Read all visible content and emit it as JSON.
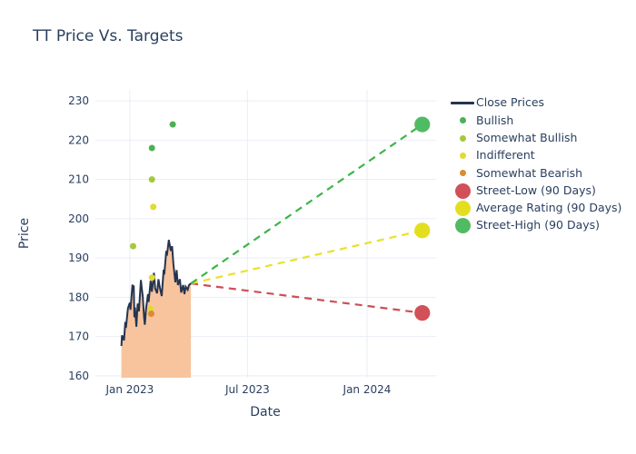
{
  "title": "TT Price Vs. Targets",
  "axes": {
    "x_title": "Date",
    "y_title": "Price"
  },
  "legend": {
    "position": "right",
    "items": [
      {
        "label": "Close Prices",
        "type": "line",
        "color": "#26344f"
      },
      {
        "label": "Bullish",
        "type": "dot-sm",
        "color": "#4ab154"
      },
      {
        "label": "Somewhat Bullish",
        "type": "dot-sm",
        "color": "#a4c93b"
      },
      {
        "label": "Indifferent",
        "type": "dot-sm",
        "color": "#e1da33"
      },
      {
        "label": "Somewhat Bearish",
        "type": "dot-sm",
        "color": "#db8b33"
      },
      {
        "label": "Street-Low (90 Days)",
        "type": "dot-lg",
        "color": "#d25058"
      },
      {
        "label": "Average Rating (90 Days)",
        "type": "dot-lg",
        "color": "#e4de20"
      },
      {
        "label": "Street-High (90 Days)",
        "type": "dot-lg",
        "color": "#50bb63"
      }
    ]
  },
  "chart_data": {
    "type": "line",
    "title": "TT Price Vs. Targets",
    "xlabel": "Date",
    "ylabel": "Price",
    "grid": true,
    "gridcolor": "#e9eef6",
    "text_color": "#2a3f5f",
    "x_range": [
      "2022-11-09",
      "2024-04-17"
    ],
    "y_range": [
      159.5,
      232.8
    ],
    "y_ticks": [
      160,
      170,
      180,
      190,
      200,
      210,
      220,
      230
    ],
    "x_ticks": [
      {
        "label": "Jan 2023",
        "date": "2023-01-01"
      },
      {
        "label": "Jul 2023",
        "date": "2023-07-01"
      },
      {
        "label": "Jan 2024",
        "date": "2024-01-01"
      }
    ],
    "close_prices": {
      "name": "Close Prices",
      "line_color": "#26344f",
      "fill_color": "#f8c49e",
      "points": [
        [
          "2022-12-19",
          167.6
        ],
        [
          "2022-12-20",
          170.3
        ],
        [
          "2022-12-23",
          169.0
        ],
        [
          "2022-12-25",
          173.7
        ],
        [
          "2022-12-26",
          172.2
        ],
        [
          "2022-12-29",
          177.2
        ],
        [
          "2023-01-01",
          178.6
        ],
        [
          "2023-01-02",
          176.8
        ],
        [
          "2023-01-05",
          183.2
        ],
        [
          "2023-01-06",
          181.5
        ],
        [
          "2023-01-07",
          183.0
        ],
        [
          "2023-01-08",
          174.9
        ],
        [
          "2023-01-09",
          177.4
        ],
        [
          "2023-01-11",
          172.5
        ],
        [
          "2023-01-13",
          178.4
        ],
        [
          "2023-01-15",
          176.4
        ],
        [
          "2023-01-18",
          184.4
        ],
        [
          "2023-01-19",
          182.8
        ],
        [
          "2023-01-21",
          180.0
        ],
        [
          "2023-01-23",
          174.8
        ],
        [
          "2023-01-24",
          173.0
        ],
        [
          "2023-01-26",
          177.2
        ],
        [
          "2023-01-29",
          180.8
        ],
        [
          "2023-01-30",
          178.8
        ],
        [
          "2023-02-02",
          184.2
        ],
        [
          "2023-02-04",
          181.4
        ],
        [
          "2023-02-07",
          186.2
        ],
        [
          "2023-02-09",
          182.2
        ],
        [
          "2023-02-12",
          181.0
        ],
        [
          "2023-02-14",
          184.6
        ],
        [
          "2023-02-16",
          182.6
        ],
        [
          "2023-02-19",
          180.3
        ],
        [
          "2023-02-22",
          187.0
        ],
        [
          "2023-02-23",
          185.8
        ],
        [
          "2023-02-26",
          191.8
        ],
        [
          "2023-02-27",
          190.6
        ],
        [
          "2023-03-02",
          194.6
        ],
        [
          "2023-03-05",
          191.8
        ],
        [
          "2023-03-07",
          193.0
        ],
        [
          "2023-03-09",
          188.6
        ],
        [
          "2023-03-12",
          183.8
        ],
        [
          "2023-03-14",
          186.9
        ],
        [
          "2023-03-16",
          183.1
        ],
        [
          "2023-03-19",
          184.6
        ],
        [
          "2023-03-21",
          181.2
        ],
        [
          "2023-03-24",
          183.1
        ],
        [
          "2023-03-26",
          180.8
        ],
        [
          "2023-03-28",
          182.7
        ],
        [
          "2023-03-31",
          181.9
        ],
        [
          "2023-04-02",
          183.1
        ],
        [
          "2023-04-05",
          183.5
        ]
      ]
    },
    "rating_colors": {
      "Bullish": "#4ab154",
      "Somewhat Bullish": "#a4c93b",
      "Indifferent": "#e1da33",
      "Somewhat Bearish": "#db8b33"
    },
    "ratings": [
      {
        "date": "2023-01-06",
        "price": 193,
        "category": "Somewhat Bullish"
      },
      {
        "date": "2023-02-02",
        "price": 177,
        "category": "Indifferent"
      },
      {
        "date": "2023-02-03",
        "price": 175.8,
        "category": "Somewhat Bearish"
      },
      {
        "date": "2023-02-04",
        "price": 185,
        "category": "Indifferent"
      },
      {
        "date": "2023-02-04",
        "price": 210,
        "category": "Somewhat Bullish"
      },
      {
        "date": "2023-02-04",
        "price": 218,
        "category": "Bullish"
      },
      {
        "date": "2023-02-06",
        "price": 203,
        "category": "Indifferent"
      },
      {
        "date": "2023-03-08",
        "price": 224,
        "category": "Bullish"
      }
    ],
    "projection_start": {
      "date": "2023-04-05",
      "price": 183.5
    },
    "targets": {
      "date": "2024-03-26",
      "items": [
        {
          "label": "Street-Low (90 Days)",
          "price": 176,
          "dot_color": "#d25058",
          "dash_color": "#cc4f55"
        },
        {
          "label": "Average Rating (90 Days)",
          "price": 197,
          "dot_color": "#e4de20",
          "dash_color": "#e8e229"
        },
        {
          "label": "Street-High (90 Days)",
          "price": 224,
          "dot_color": "#50bb63",
          "dash_color": "#3cb54a"
        }
      ]
    }
  }
}
